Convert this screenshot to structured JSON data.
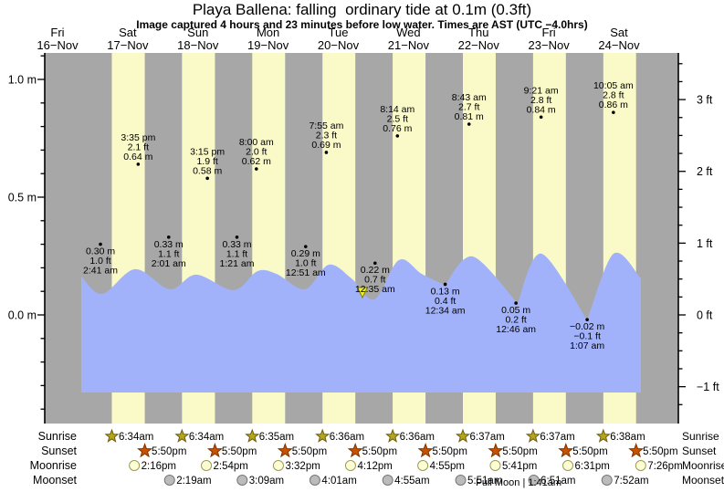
{
  "title": "Playa Ballena: falling  ordinary tide at 0.1m (0.3ft)",
  "subtitle": "Image captured 4 hours and 23 minutes before low water. Times are AST (UTC −4.0hrs)",
  "days": [
    {
      "name": "Fri",
      "date": "16−Nov"
    },
    {
      "name": "Sat",
      "date": "17−Nov"
    },
    {
      "name": "Sun",
      "date": "18−Nov"
    },
    {
      "name": "Mon",
      "date": "19−Nov"
    },
    {
      "name": "Tue",
      "date": "20−Nov"
    },
    {
      "name": "Wed",
      "date": "21−Nov"
    },
    {
      "name": "Thu",
      "date": "22−Nov"
    },
    {
      "name": "Fri",
      "date": "23−Nov"
    },
    {
      "name": "Sat",
      "date": "24−Nov"
    }
  ],
  "y_axis_left": {
    "unit": "m",
    "ticks": [
      {
        "value": 1.0,
        "label": "1.0 m"
      },
      {
        "value": 0.5,
        "label": "0.5 m"
      },
      {
        "value": 0.0,
        "label": "0.0 m"
      }
    ]
  },
  "y_axis_right": {
    "unit": "ft",
    "ticks": [
      {
        "value": 3,
        "label": "3 ft"
      },
      {
        "value": 2,
        "label": "2 ft"
      },
      {
        "value": 1,
        "label": "1 ft"
      },
      {
        "value": 0,
        "label": "0 ft"
      },
      {
        "value": -1,
        "label": "−1 ft"
      }
    ]
  },
  "chart_data": {
    "type": "area",
    "series_name": "tide height",
    "high_tides": [
      {
        "day_index": 1,
        "time": "3:35 pm",
        "height_ft": "2.1 ft",
        "height_m": "0.64 m"
      },
      {
        "day_index": 2,
        "time": "3:15 pm",
        "height_ft": "1.9 ft",
        "height_m": "0.58 m"
      },
      {
        "day_index": 3,
        "time": "8:00 am",
        "height_ft": "2.0 ft",
        "height_m": "0.62 m"
      },
      {
        "day_index": 4,
        "time": "7:55 am",
        "height_ft": "2.3 ft",
        "height_m": "0.69 m"
      },
      {
        "day_index": 5,
        "time": "8:14 am",
        "height_ft": "2.5 ft",
        "height_m": "0.76 m"
      },
      {
        "day_index": 6,
        "time": "8:43 am",
        "height_ft": "2.7 ft",
        "height_m": "0.81 m"
      },
      {
        "day_index": 7,
        "time": "9:21 am",
        "height_ft": "2.8 ft",
        "height_m": "0.84 m"
      },
      {
        "day_index": 8,
        "time": "10:05 am",
        "height_ft": "2.8 ft",
        "height_m": "0.86 m"
      }
    ],
    "low_tides": [
      {
        "day_index": 1,
        "time": "2:41 am",
        "height_ft": "1.0 ft",
        "height_m": "0.30 m"
      },
      {
        "day_index": 2,
        "time": "2:01 am",
        "height_ft": "1.1 ft",
        "height_m": "0.33 m"
      },
      {
        "day_index": 3,
        "time": "1:21 am",
        "height_ft": "1.1 ft",
        "height_m": "0.33 m"
      },
      {
        "day_index": 4,
        "time": "12:51 am",
        "height_ft": "1.0 ft",
        "height_m": "0.29 m"
      },
      {
        "day_index": 5,
        "time": "12:35 am",
        "height_ft": "0.7 ft",
        "height_m": "0.22 m"
      },
      {
        "day_index": 6,
        "time": "12:34 am",
        "height_ft": "0.4 ft",
        "height_m": "0.13 m"
      },
      {
        "day_index": 7,
        "time": "12:46 am",
        "height_ft": "0.2 ft",
        "height_m": "0.05 m"
      },
      {
        "day_index": 8,
        "time": "1:07 am",
        "height_ft": "−0.1 ft",
        "height_m": "−0.02 m"
      }
    ],
    "water_curve_points": [
      [
        89,
        0.163
      ],
      [
        112,
        0.089
      ],
      [
        148,
        0.194
      ],
      [
        186,
        0.109
      ],
      [
        215,
        0.171
      ],
      [
        256,
        0.105
      ],
      [
        282,
        0.186
      ],
      [
        303,
        0.174
      ],
      [
        334,
        0.109
      ],
      [
        360,
        0.213
      ],
      [
        385,
        0.155
      ],
      [
        410,
        0.066
      ],
      [
        437,
        0.233
      ],
      [
        462,
        0.174
      ],
      [
        488,
        0.128,
        1
      ],
      [
        518,
        0.248
      ],
      [
        567,
        0.05,
        1
      ],
      [
        593,
        0.26
      ],
      [
        643,
        -0.019,
        1
      ],
      [
        672,
        0.26
      ],
      [
        702,
        0.155
      ]
    ],
    "current_time_marker_x_px": 397
  },
  "astro": {
    "rows": [
      {
        "id": "sunrise",
        "label": "Sunrise",
        "icon": "sunrise-star",
        "first_day_index": 1,
        "times": [
          "6:34am",
          "6:34am",
          "6:35am",
          "6:36am",
          "6:36am",
          "6:37am",
          "6:37am",
          "6:38am"
        ]
      },
      {
        "id": "sunset",
        "label": "Sunset",
        "icon": "sunset-star",
        "first_day_index": 1,
        "times": [
          "5:50pm",
          "5:50pm",
          "5:50pm",
          "5:50pm",
          "5:50pm",
          "5:50pm",
          "5:50pm",
          "5:50pm"
        ]
      },
      {
        "id": "moonrise",
        "label": "Moonrise",
        "icon": "moonrise-circle",
        "first_day_index": 1,
        "times": [
          "2:16pm",
          "2:54pm",
          "3:32pm",
          "4:12pm",
          "4:55pm",
          "5:41pm",
          "6:31pm",
          "7:26pm"
        ]
      },
      {
        "id": "moonset",
        "label": "Moonset",
        "icon": "moonset-circle",
        "first_day_index": 2,
        "times": [
          "2:19am",
          "3:09am",
          "4:01am",
          "4:55am",
          "5:51am",
          "6:51am",
          "7:52am"
        ]
      }
    ],
    "moon_phase": {
      "text": "Full Moon | 1:41am",
      "day_index": 7,
      "time": "1:41am"
    }
  },
  "colors": {
    "night_band": "#a7a7a7",
    "day_band": "#fafac8",
    "water": "#a2b2fa",
    "date_label": "#e0301e",
    "sunrise_star": "#b5a51e",
    "sunset_star": "#c85200",
    "moonrise_circle": "#ffffd4",
    "moonset_circle": "#bbbbbb",
    "current_marker": "#f0f028"
  }
}
